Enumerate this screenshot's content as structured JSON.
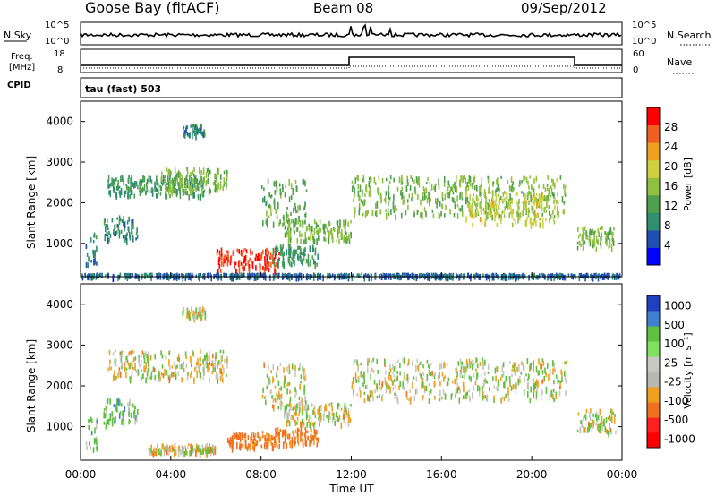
{
  "header": {
    "station": "Goose Bay (fitACF)",
    "beam": "Beam 08",
    "date": "09/Sep/2012"
  },
  "top_panels": {
    "nsky_label": "N.Sky",
    "nsearch_label": "N.Search",
    "nsky_ticks": [
      "10^5",
      "10^0"
    ],
    "nsearch_ticks": [
      "10^5",
      "10^0"
    ],
    "freq_label_1": "Freq.",
    "freq_label_2": "[MHz]",
    "freq_ticks": [
      "18",
      "8"
    ],
    "nave_ticks": [
      "60",
      "0"
    ],
    "nave_label": "Nave",
    "cpid_label": "CPID",
    "cpid_value": "tau (fast) 503"
  },
  "x_axis": {
    "label": "Time UT",
    "ticks": [
      "00:00",
      "04:00",
      "08:00",
      "12:00",
      "16:00",
      "20:00",
      "00:00"
    ]
  },
  "colors": {
    "power_scale": [
      "#0000ff",
      "#1f4fb0",
      "#2f8f70",
      "#4f9f4f",
      "#8fc040",
      "#d0d040",
      "#f0a020",
      "#f06020",
      "#ff0000"
    ],
    "velocity_scale": [
      "#2040c0",
      "#4080d0",
      "#60c040",
      "#80e060",
      "#c8c8c0",
      "#b8b8b0",
      "#f0a020",
      "#f07020",
      "#ff2020",
      "#ff0000"
    ]
  },
  "chart_data": [
    {
      "type": "heatmap",
      "title": "",
      "xlabel": "Time UT",
      "ylabel": "Slant Range [km]",
      "xlim": [
        0,
        24
      ],
      "ylim": [
        180,
        4500
      ],
      "yticks": [
        "1000",
        "2000",
        "3000",
        "4000"
      ],
      "colorbar": {
        "label": "Power [dB]",
        "ticks": [
          "4",
          "8",
          "12",
          "16",
          "20",
          "24",
          "28"
        ],
        "range": [
          0,
          30
        ]
      },
      "regions": [
        {
          "t0": 0.2,
          "t1": 0.7,
          "r0": 500,
          "r1": 1300,
          "level": 8
        },
        {
          "t0": 1.0,
          "t1": 2.5,
          "r0": 1100,
          "r1": 1700,
          "level": 8
        },
        {
          "t0": 1.2,
          "t1": 5.5,
          "r0": 2200,
          "r1": 2700,
          "level": 10
        },
        {
          "t0": 3.5,
          "t1": 6.5,
          "r0": 2300,
          "r1": 2900,
          "level": 14
        },
        {
          "t0": 4.5,
          "t1": 5.5,
          "r0": 3700,
          "r1": 3950,
          "level": 8
        },
        {
          "t0": 6.0,
          "t1": 8.8,
          "r0": 350,
          "r1": 900,
          "level": 27
        },
        {
          "t0": 8.0,
          "t1": 10.0,
          "r0": 1500,
          "r1": 2600,
          "level": 12
        },
        {
          "t0": 9.0,
          "t1": 12.0,
          "r0": 1100,
          "r1": 1600,
          "level": 14
        },
        {
          "t0": 8.5,
          "t1": 10.5,
          "r0": 500,
          "r1": 1000,
          "level": 10
        },
        {
          "t0": 12.0,
          "t1": 21.5,
          "r0": 1700,
          "r1": 2700,
          "level": 14
        },
        {
          "t0": 17.0,
          "t1": 21.0,
          "r0": 1500,
          "r1": 2300,
          "level": 18
        },
        {
          "t0": 22.0,
          "t1": 23.7,
          "r0": 900,
          "r1": 1450,
          "level": 14
        },
        {
          "t0": 0.0,
          "t1": 24.0,
          "r0": 180,
          "r1": 280,
          "level": 6
        }
      ]
    },
    {
      "type": "heatmap",
      "title": "",
      "xlabel": "Time UT",
      "ylabel": "Slant Range [km]",
      "xlim": [
        0,
        24
      ],
      "ylim": [
        180,
        4500
      ],
      "yticks": [
        "1000",
        "2000",
        "3000",
        "4000"
      ],
      "colorbar": {
        "label": "Velocity [m s⁻¹]",
        "ticks": [
          "1000",
          "500",
          "100",
          "25",
          "-25",
          "-100",
          "-500",
          "-1000"
        ],
        "range": [
          -1200,
          1200
        ]
      },
      "regions": [
        {
          "t0": 0.2,
          "t1": 0.7,
          "r0": 500,
          "r1": 1300,
          "level": 150
        },
        {
          "t0": 1.0,
          "t1": 2.5,
          "r0": 1100,
          "r1": 1700,
          "level": 200
        },
        {
          "t0": 1.2,
          "t1": 6.5,
          "r0": 2200,
          "r1": 2900,
          "level": 0
        },
        {
          "t0": 4.5,
          "t1": 5.5,
          "r0": 3700,
          "r1": 3950,
          "level": 0
        },
        {
          "t0": 6.5,
          "t1": 8.8,
          "r0": 500,
          "r1": 900,
          "level": -300
        },
        {
          "t0": 3.0,
          "t1": 6.0,
          "r0": 400,
          "r1": 600,
          "level": -80
        },
        {
          "t0": 8.0,
          "t1": 10.0,
          "r0": 1500,
          "r1": 2600,
          "level": 0
        },
        {
          "t0": 9.0,
          "t1": 12.0,
          "r0": 1100,
          "r1": 1600,
          "level": 0
        },
        {
          "t0": 8.5,
          "t1": 10.5,
          "r0": 600,
          "r1": 1000,
          "level": -300
        },
        {
          "t0": 12.0,
          "t1": 21.5,
          "r0": 1700,
          "r1": 2700,
          "level": 0
        },
        {
          "t0": 22.0,
          "t1": 23.7,
          "r0": 900,
          "r1": 1450,
          "level": 0
        }
      ]
    }
  ]
}
